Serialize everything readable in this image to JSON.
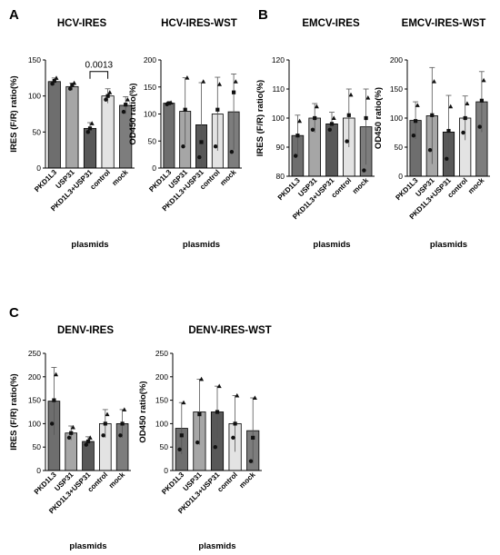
{
  "panels": [
    {
      "letter": "A"
    },
    {
      "letter": "B"
    },
    {
      "letter": "C"
    }
  ],
  "chart_data": [
    {
      "type": "bar",
      "panel": "A",
      "title": "HCV-IRES",
      "ylabel": "IRES (F/R) ratio(%)",
      "xlabel": "plasmids",
      "ylim": [
        0,
        150
      ],
      "yticks": [
        0,
        50,
        100,
        150
      ],
      "categories": [
        "PKD1L3",
        "USP31",
        "PKD1L3+USP31",
        "control",
        "mock"
      ],
      "values": [
        120,
        113,
        55,
        100,
        87
      ],
      "err": [
        5,
        5,
        8,
        10,
        12
      ],
      "points": [
        [
          117,
          121,
          125
        ],
        [
          110,
          115,
          118
        ],
        [
          50,
          55,
          62
        ],
        [
          95,
          100,
          105
        ],
        [
          78,
          88,
          95
        ]
      ],
      "bar_colors": [
        "#6e6e6e",
        "#a6a6a6",
        "#585858",
        "#e3e3e3",
        "#7d7d7d"
      ],
      "annotation": {
        "text": "0.0013",
        "from": 2,
        "to": 3,
        "y": 134
      }
    },
    {
      "type": "bar",
      "panel": "A",
      "title": "HCV-IRES-WST",
      "ylabel": "OD450 ratio(%)",
      "xlabel": "plasmids",
      "ylim": [
        0,
        200
      ],
      "yticks": [
        0,
        50,
        100,
        150,
        200
      ],
      "categories": [
        "PKD1L3",
        "USP31",
        "PKD1L3+USP31",
        "control",
        "mock"
      ],
      "values": [
        120,
        105,
        80,
        100,
        104
      ],
      "err": [
        2,
        62,
        78,
        68,
        70
      ],
      "points": [
        [
          118,
          120,
          121
        ],
        [
          40,
          108,
          167
        ],
        [
          20,
          48,
          160
        ],
        [
          40,
          108,
          155
        ],
        [
          30,
          140,
          160
        ]
      ],
      "bar_colors": [
        "#6e6e6e",
        "#a6a6a6",
        "#585858",
        "#e3e3e3",
        "#7d7d7d"
      ]
    },
    {
      "type": "bar",
      "panel": "B",
      "title": "EMCV-IRES",
      "ylabel": "IRES (F/R) ratio(%)",
      "xlabel": "plasmids",
      "ylim": [
        80,
        120
      ],
      "yticks": [
        80,
        90,
        100,
        110,
        120
      ],
      "categories": [
        "PKD1L3",
        "USP31",
        "PKD1L3+USP31",
        "control",
        "mock"
      ],
      "values": [
        94,
        100,
        98,
        100,
        97
      ],
      "err": [
        7,
        5,
        4,
        10,
        13
      ],
      "points": [
        [
          87,
          94,
          99
        ],
        [
          96,
          100,
          104
        ],
        [
          96,
          98,
          100
        ],
        [
          92,
          101,
          108
        ],
        [
          82,
          100,
          107
        ]
      ],
      "bar_colors": [
        "#6e6e6e",
        "#a6a6a6",
        "#585858",
        "#e3e3e3",
        "#7d7d7d"
      ]
    },
    {
      "type": "bar",
      "panel": "B",
      "title": "EMCV-IRES-WST",
      "ylabel": "OD450 ratio(%)",
      "xlabel": "plasmids",
      "ylim": [
        0,
        200
      ],
      "yticks": [
        0,
        50,
        100,
        150,
        200
      ],
      "categories": [
        "PKD1L3",
        "USP31",
        "PKD1L3+USP31",
        "control",
        "mock"
      ],
      "values": [
        96,
        104,
        76,
        100,
        128
      ],
      "err": [
        32,
        83,
        63,
        38,
        52
      ],
      "points": [
        [
          70,
          95,
          122
        ],
        [
          45,
          105,
          163
        ],
        [
          30,
          78,
          120
        ],
        [
          75,
          100,
          125
        ],
        [
          85,
          130,
          165
        ]
      ],
      "bar_colors": [
        "#6e6e6e",
        "#a6a6a6",
        "#585858",
        "#e3e3e3",
        "#7d7d7d"
      ]
    },
    {
      "type": "bar",
      "panel": "C",
      "title": "DENV-IRES",
      "ylabel": "IRES (F/R) ratio(%)",
      "xlabel": "plasmids",
      "ylim": [
        0,
        250
      ],
      "yticks": [
        0,
        50,
        100,
        150,
        200,
        250
      ],
      "categories": [
        "PKD1L3",
        "USP31",
        "PKD1L3+USP31",
        "control",
        "mock"
      ],
      "values": [
        148,
        80,
        62,
        100,
        100
      ],
      "err": [
        72,
        15,
        10,
        30,
        30
      ],
      "points": [
        [
          100,
          150,
          205
        ],
        [
          70,
          80,
          92
        ],
        [
          55,
          62,
          70
        ],
        [
          75,
          100,
          120
        ],
        [
          75,
          100,
          130
        ]
      ],
      "bar_colors": [
        "#6e6e6e",
        "#a6a6a6",
        "#585858",
        "#e3e3e3",
        "#7d7d7d"
      ]
    },
    {
      "type": "bar",
      "panel": "C",
      "title": "DENV-IRES-WST",
      "ylabel": "OD450 ratio(%)",
      "xlabel": "plasmids",
      "ylim": [
        0,
        250
      ],
      "yticks": [
        0,
        50,
        100,
        150,
        200,
        250
      ],
      "categories": [
        "PKD1L3",
        "USP31",
        "PKD1L3+USP31",
        "control",
        "mock"
      ],
      "values": [
        90,
        125,
        125,
        100,
        85
      ],
      "err": [
        55,
        70,
        55,
        60,
        70
      ],
      "points": [
        [
          45,
          75,
          145
        ],
        [
          60,
          120,
          195
        ],
        [
          50,
          125,
          180
        ],
        [
          70,
          100,
          160
        ],
        [
          20,
          70,
          155
        ]
      ],
      "bar_colors": [
        "#6e6e6e",
        "#a6a6a6",
        "#585858",
        "#e3e3e3",
        "#7d7d7d"
      ]
    }
  ]
}
